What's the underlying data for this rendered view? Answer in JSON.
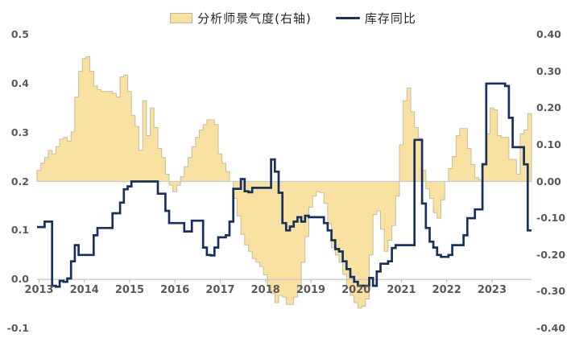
{
  "legend": {
    "items": [
      {
        "label": "分析师景气度(右轴)",
        "marker": "area-swatch"
      },
      {
        "label": "库存同比",
        "marker": "line-swatch"
      }
    ]
  },
  "colors": {
    "area_fill": "#F9E2A1",
    "area_stroke": "#C6BC9E",
    "line": "#16325C",
    "axis_text": "#595959",
    "axis_line": "#BFBFBF",
    "zero_baseline": "#C9C9C9",
    "background": "#FFFFFF"
  },
  "chart_data": {
    "type": "combo_area_line",
    "title": "",
    "x_unit": "month",
    "x_start": "2013-01",
    "x_end": "2023-11",
    "grid": "off",
    "legend_position": "top-center",
    "x_tick_labels": [
      "2013",
      "2014",
      "2015",
      "2016",
      "2017",
      "2018",
      "2019",
      "2020",
      "2021",
      "2022",
      "2023"
    ],
    "left_axis": {
      "min": -0.1,
      "max": 0.5,
      "tick_labels": [
        "0.5",
        "0.4",
        "0.3",
        "0.2",
        "0.1",
        "0.0",
        "-0.1"
      ],
      "series": "库存同比"
    },
    "right_axis": {
      "min": -0.4,
      "max": 0.4,
      "tick_labels": [
        "0.40",
        "0.30",
        "0.20",
        "0.10",
        "0.00",
        "-0.10",
        "-0.20",
        "-0.30",
        "-0.40"
      ],
      "series": "分析师景气度(右轴)"
    },
    "series": [
      {
        "name": "分析师景气度(右轴)",
        "type": "area",
        "axis": "right",
        "color": "#F9E2A1",
        "stroke": "#C6BC9E",
        "baseline": 0,
        "values": [
          0.03,
          0.05,
          0.065,
          0.085,
          0.075,
          0.095,
          0.115,
          0.12,
          0.11,
          0.135,
          0.23,
          0.3,
          0.335,
          0.34,
          0.3,
          0.26,
          0.25,
          0.245,
          0.245,
          0.245,
          0.24,
          0.23,
          0.285,
          0.29,
          0.245,
          0.18,
          0.15,
          0.085,
          0.22,
          0.125,
          0.2,
          0.147,
          0.09,
          0.065,
          0.02,
          -0.01,
          -0.028,
          -0.01,
          0.013,
          0.04,
          0.065,
          0.095,
          0.12,
          0.14,
          0.155,
          0.168,
          0.168,
          0.155,
          0.075,
          0.05,
          0.027,
          0.0,
          -0.046,
          -0.094,
          -0.144,
          -0.173,
          -0.19,
          -0.21,
          -0.22,
          -0.232,
          -0.254,
          -0.282,
          -0.305,
          -0.33,
          -0.31,
          -0.315,
          -0.335,
          -0.335,
          -0.315,
          -0.29,
          -0.22,
          -0.15,
          -0.07,
          -0.04,
          -0.028,
          -0.03,
          -0.06,
          -0.115,
          -0.18,
          -0.2,
          -0.22,
          -0.253,
          -0.29,
          -0.31,
          -0.33,
          -0.345,
          -0.34,
          -0.32,
          -0.2,
          -0.09,
          -0.08,
          -0.13,
          -0.19,
          -0.16,
          -0.12,
          -0.04,
          0.1,
          0.22,
          0.255,
          0.19,
          0.147,
          0.118,
          0.03,
          -0.02,
          -0.046,
          -0.085,
          -0.1,
          -0.05,
          0.0,
          0.035,
          0.068,
          0.125,
          0.144,
          0.144,
          0.09,
          0.046,
          0.01,
          0.005,
          0.05,
          0.13,
          0.2,
          0.195,
          0.125,
          0.12,
          0.12,
          0.06,
          0.06,
          0.02,
          0.13,
          0.14,
          0.185
        ]
      },
      {
        "name": "库存同比",
        "type": "line",
        "axis": "left",
        "color": "#16325C",
        "values": [
          0.107,
          0.107,
          0.118,
          0.118,
          -0.013,
          -0.015,
          -0.003,
          -0.005,
          0.002,
          0.037,
          0.07,
          0.05,
          0.05,
          0.05,
          0.05,
          0.09,
          0.105,
          0.105,
          0.105,
          0.105,
          0.135,
          0.135,
          0.157,
          0.184,
          0.19,
          0.2,
          0.2,
          0.2,
          0.2,
          0.2,
          0.2,
          0.2,
          0.175,
          0.175,
          0.14,
          0.115,
          0.115,
          0.115,
          0.115,
          0.098,
          0.098,
          0.12,
          0.12,
          0.12,
          0.065,
          0.05,
          0.049,
          0.065,
          0.086,
          0.086,
          0.09,
          0.118,
          0.185,
          0.185,
          0.205,
          0.18,
          0.178,
          0.187,
          0.187,
          0.187,
          0.187,
          0.187,
          0.245,
          0.22,
          0.177,
          0.115,
          0.1,
          0.108,
          0.118,
          0.127,
          0.118,
          0.13,
          0.127,
          0.127,
          0.127,
          0.127,
          0.115,
          0.1,
          0.08,
          0.062,
          0.057,
          0.037,
          0.021,
          0.005,
          -0.005,
          -0.013,
          -0.013,
          -0.013,
          0.003,
          -0.013,
          0.016,
          0.032,
          0.032,
          0.037,
          0.064,
          0.07,
          0.07,
          0.07,
          0.07,
          0.07,
          0.285,
          0.285,
          0.155,
          0.105,
          0.077,
          0.065,
          0.05,
          0.046,
          0.046,
          0.05,
          0.07,
          0.07,
          0.07,
          0.09,
          0.125,
          0.125,
          0.143,
          0.143,
          0.235,
          0.4,
          0.4,
          0.4,
          0.4,
          0.4,
          0.395,
          0.33,
          0.27,
          0.27,
          0.27,
          0.235,
          0.1
        ]
      }
    ]
  }
}
